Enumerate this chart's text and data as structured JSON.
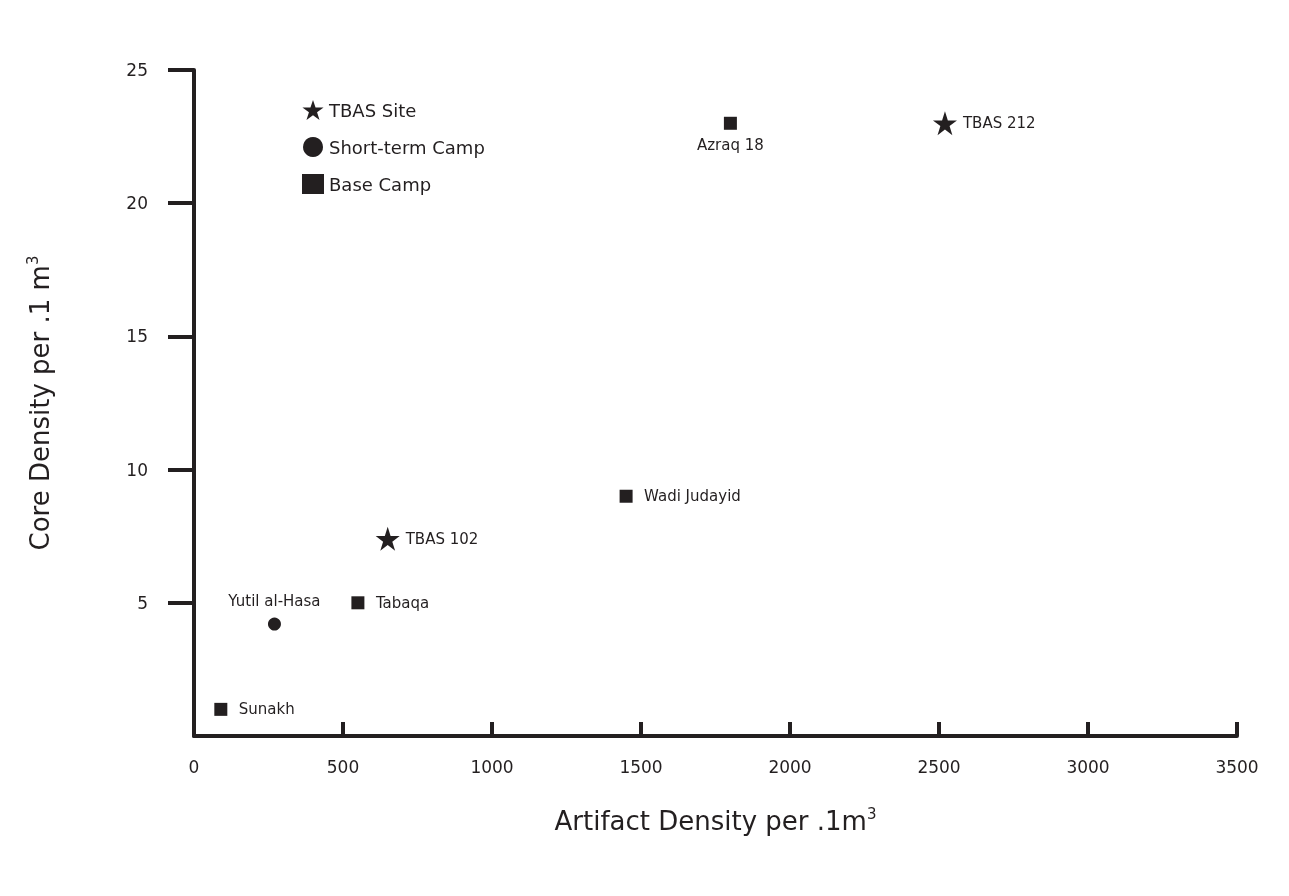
{
  "chart_data": {
    "type": "scatter",
    "xlabel": "Artifact Density per .1m$^{3}$",
    "ylabel": "Core Density per .1 m$^{3}$",
    "xlim": [
      0,
      3500
    ],
    "xticks": [
      0,
      500,
      1000,
      1500,
      2000,
      2500,
      3000,
      3500
    ],
    "ylim": [
      0,
      25
    ],
    "yticks": [
      5,
      10,
      15,
      20,
      25
    ],
    "grid": false,
    "legend": "top left",
    "series": [
      {
        "name": "TBAS Site",
        "color": "#231f20",
        "marker": "star",
        "x": [
          650,
          2520
        ],
        "values": [
          7.4,
          23
        ]
      },
      {
        "name": "Short-term Camp",
        "color": "#231f20",
        "marker": "circle",
        "x": [
          270
        ],
        "values": [
          4.2
        ]
      },
      {
        "name": "Base Camp",
        "color": "#231f20",
        "marker": "square",
        "x": [
          90,
          550,
          1450,
          1800
        ],
        "values": [
          1,
          5,
          9,
          23
        ]
      }
    ],
    "annotations": [
      {
        "text": "TBAS 102",
        "x": 650,
        "y": 7.4
      },
      {
        "text": "TBAS 212",
        "x": 2520,
        "y": 23
      },
      {
        "text": "Yutil al-Hasa",
        "x": 270,
        "y": 4.2
      },
      {
        "text": "Sunakh",
        "x": 90,
        "y": 1
      },
      {
        "text": "Tabaqa",
        "x": 550,
        "y": 5
      },
      {
        "text": "Wadi Judayid",
        "x": 1450,
        "y": 9
      },
      {
        "text": "Azraq 18",
        "x": 1800,
        "y": 23
      }
    ]
  }
}
